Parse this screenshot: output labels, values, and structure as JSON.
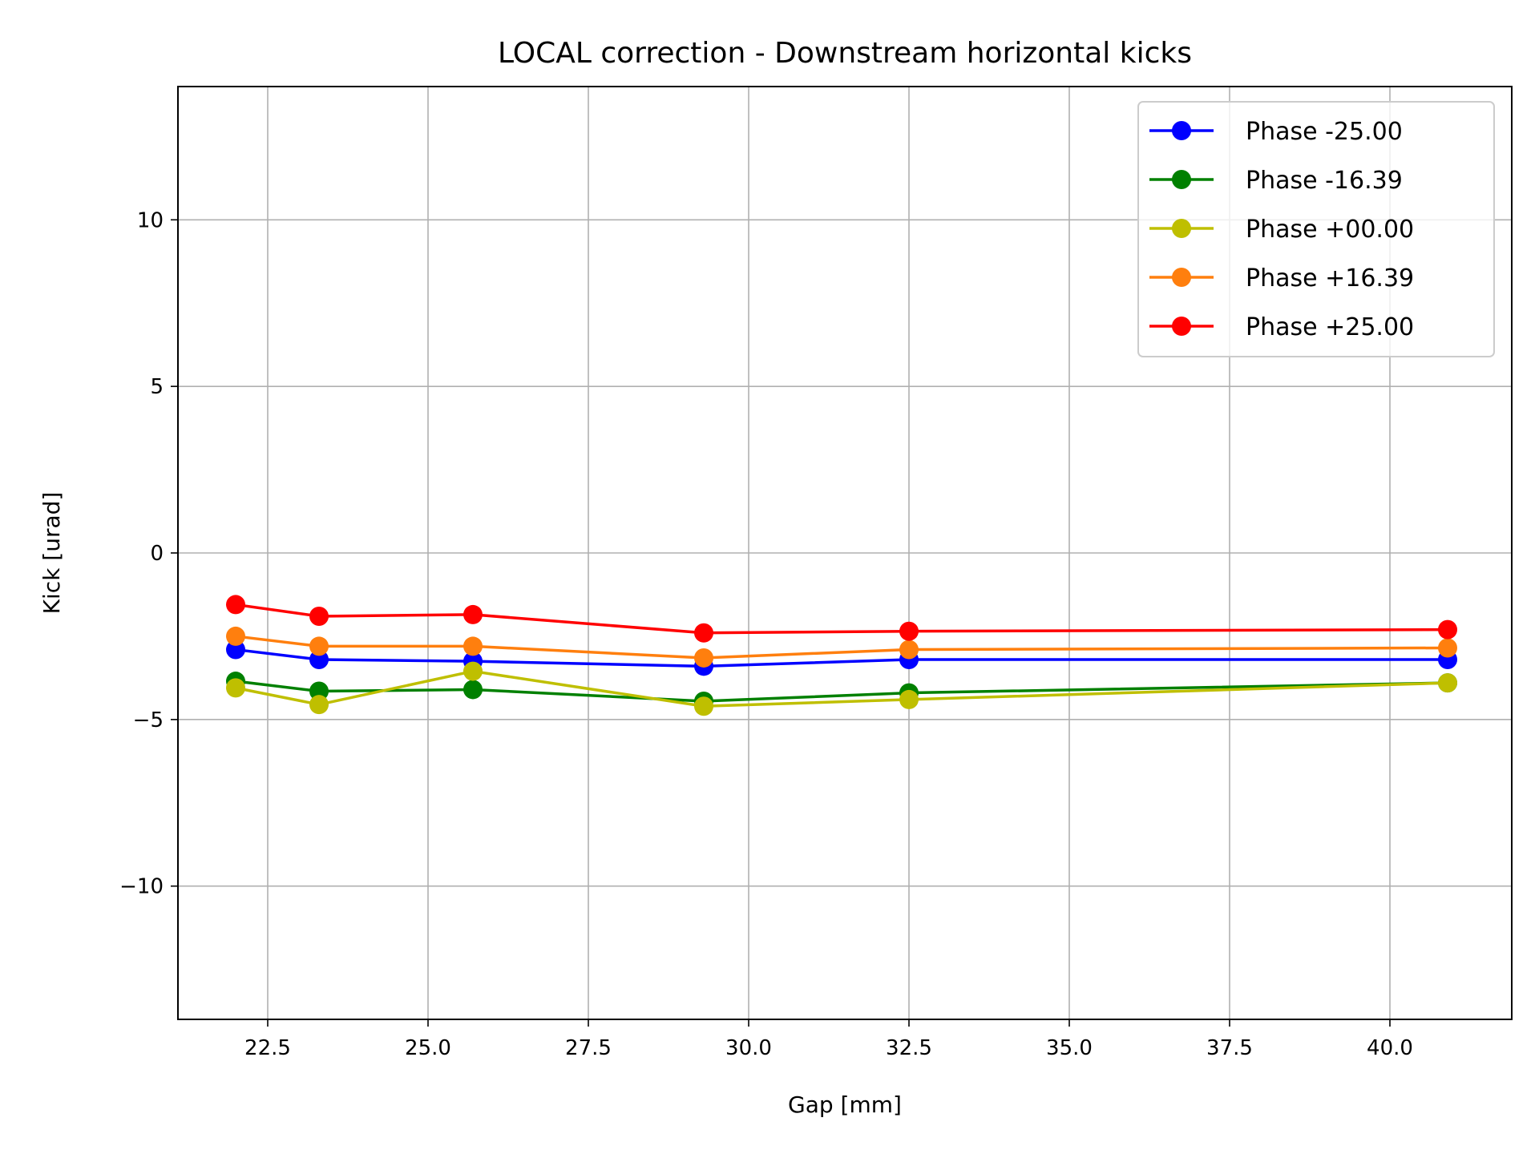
{
  "chart_data": {
    "type": "line",
    "title": "LOCAL correction - Downstream horizontal kicks",
    "xlabel": "Gap [mm]",
    "ylabel": "Kick [urad]",
    "xlim": [
      21.1,
      41.9
    ],
    "ylim": [
      -14,
      14
    ],
    "xticks": [
      22.5,
      25.0,
      27.5,
      30.0,
      32.5,
      35.0,
      37.5,
      40.0
    ],
    "xtick_labels": [
      "22.5",
      "25.0",
      "27.5",
      "30.0",
      "32.5",
      "35.0",
      "37.5",
      "40.0"
    ],
    "yticks": [
      -10,
      -5,
      0,
      5,
      10
    ],
    "ytick_labels": [
      "−10",
      "−5",
      "0",
      "5",
      "10"
    ],
    "grid": true,
    "legend_position": "top-right",
    "x": [
      22.0,
      23.3,
      25.7,
      29.3,
      32.5,
      40.9
    ],
    "series": [
      {
        "name": "Phase -25.00",
        "color": "#0000ff",
        "values": [
          -2.9,
          -3.2,
          -3.25,
          -3.4,
          -3.2,
          -3.2
        ]
      },
      {
        "name": "Phase -16.39",
        "color": "#008000",
        "values": [
          -3.85,
          -4.15,
          -4.1,
          -4.45,
          -4.2,
          -3.9
        ]
      },
      {
        "name": "Phase +00.00",
        "color": "#bfbf00",
        "values": [
          -4.05,
          -4.55,
          -3.55,
          -4.6,
          -4.4,
          -3.9
        ]
      },
      {
        "name": "Phase +16.39",
        "color": "#ff7f0e",
        "values": [
          -2.5,
          -2.8,
          -2.8,
          -3.15,
          -2.9,
          -2.85
        ]
      },
      {
        "name": "Phase +25.00",
        "color": "#ff0000",
        "values": [
          -1.55,
          -1.9,
          -1.85,
          -2.4,
          -2.35,
          -2.3
        ]
      }
    ]
  }
}
